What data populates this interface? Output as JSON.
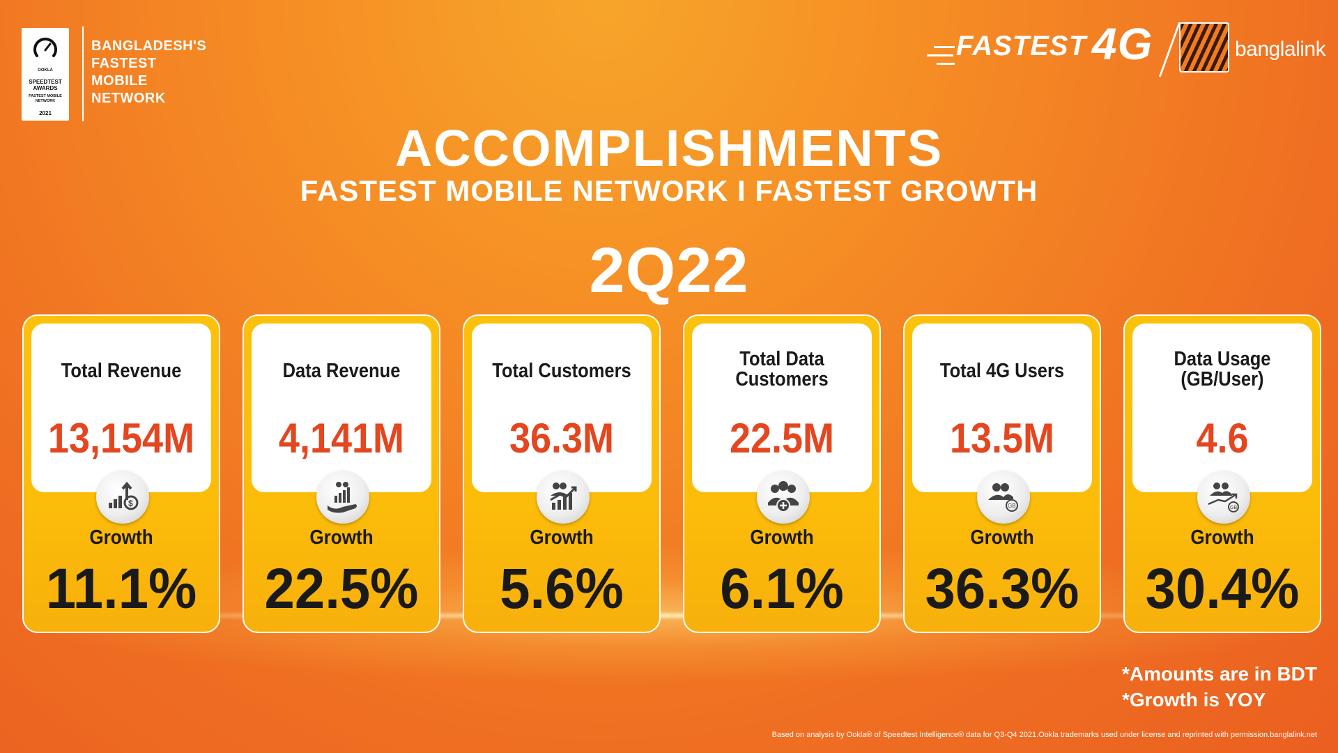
{
  "badge": {
    "line1": "OOKLA",
    "line2": "SPEEDTEST AWARDS",
    "line3": "FASTEST MOBILE NETWORK",
    "year": "2021",
    "claim": [
      "BANGLADESH'S",
      "FASTEST",
      "MOBILE",
      "NETWORK"
    ]
  },
  "brand": {
    "fastest": "FASTEST",
    "four_g": "4G",
    "name": "banglalink",
    "logo_icon": "tiger-stripes-logo"
  },
  "header": {
    "title": "ACCOMPLISHMENTS",
    "subtitle": "FASTEST MOBILE NETWORK  I  FASTEST GROWTH",
    "period": "2Q22"
  },
  "cards": [
    {
      "label": "Total Revenue",
      "value": "13,154M",
      "icon": "revenue-chart-dollar-icon",
      "growth_label": "Growth",
      "growth": "11.1%"
    },
    {
      "label": "Data Revenue",
      "value": "4,141M",
      "icon": "hand-growth-chart-icon",
      "growth_label": "Growth",
      "growth": "22.5%"
    },
    {
      "label": "Total Customers",
      "value": "36.3M",
      "icon": "customers-growth-icon",
      "growth_label": "Growth",
      "growth": "5.6%"
    },
    {
      "label": "Total Data Customers",
      "value": "22.5M",
      "icon": "people-add-icon",
      "growth_label": "Growth",
      "growth": "6.1%"
    },
    {
      "label": "Total 4G Users",
      "value": "13.5M",
      "icon": "users-gb-icon",
      "growth_label": "Growth",
      "growth": "36.3%"
    },
    {
      "label": "Data Usage (GB/User)",
      "value": "4.6",
      "icon": "data-usage-trend-icon",
      "growth_label": "Growth",
      "growth": "30.4%"
    }
  ],
  "notes": [
    "*Amounts are in BDT",
    "*Growth is YOY"
  ],
  "footnote": "Based on analysis by Ookla® of Speedtest Intelligence® data for Q3-Q4 2021.Ookla trademarks used under license and reprinted with permission.banglalink.net",
  "colors": {
    "background": "#f58a24",
    "card": "#fcc10a",
    "value_red": "#e4461f"
  }
}
